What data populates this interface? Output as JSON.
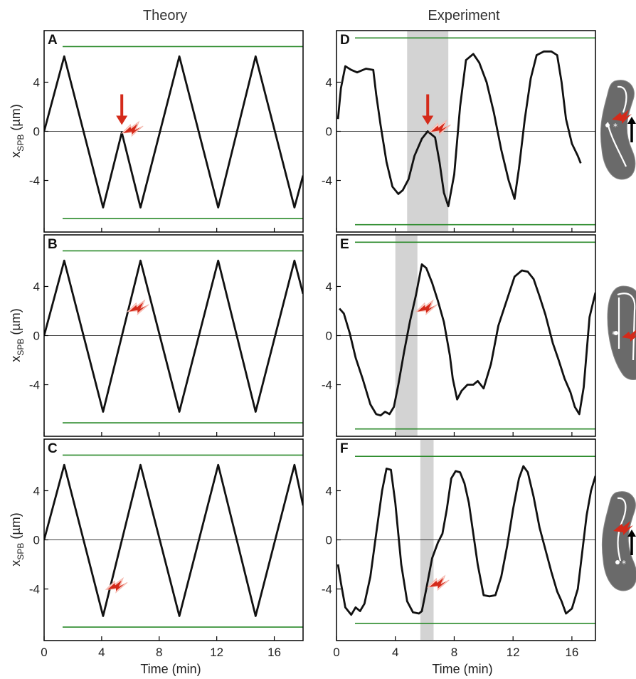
{
  "figure": {
    "col_titles": [
      "Theory",
      "Experiment"
    ],
    "xlabel": "Time (min)",
    "ylabel_main": "x",
    "ylabel_sub": "SPB",
    "ylabel_unit": " (µm)"
  },
  "colors": {
    "trace": "#111111",
    "boundary": "#2a8a2a",
    "shade": "#d3d3d3",
    "arrow": "#d42a1a",
    "cell": "#6a6a6a"
  },
  "chart_data": [
    {
      "label": "A",
      "type": "line",
      "column": "Theory",
      "xlim": [
        0,
        18
      ],
      "ylim": [
        -8.2,
        8.2
      ],
      "xticks": [
        0,
        4,
        8,
        12,
        16
      ],
      "yticks": [
        4,
        0,
        -4
      ],
      "boundaries": [
        6.9,
        -7.1
      ],
      "arrow": {
        "x": 5.4,
        "y": 0
      },
      "laser": {
        "x": 5.6,
        "y": 0.2
      },
      "series": [
        {
          "x": [
            0,
            1.4,
            4.1,
            5.4,
            6.7,
            9.4,
            12.1,
            14.7,
            17.4,
            18
          ],
          "y": [
            0,
            6.1,
            -6.2,
            -0.1,
            -6.2,
            6.1,
            -6.2,
            6.1,
            -6.2,
            -3.6
          ]
        }
      ]
    },
    {
      "label": "B",
      "type": "line",
      "column": "Theory",
      "xlim": [
        0,
        18
      ],
      "ylim": [
        -8.2,
        8.2
      ],
      "xticks": [
        0,
        4,
        8,
        12,
        16
      ],
      "yticks": [
        4,
        0,
        -4
      ],
      "boundaries": [
        6.9,
        -7.1
      ],
      "laser": {
        "x": 6.0,
        "y": 2.3
      },
      "series": [
        {
          "x": [
            0,
            1.4,
            4.1,
            6.7,
            9.4,
            12.1,
            14.7,
            17.4,
            18
          ],
          "y": [
            0,
            6.1,
            -6.2,
            6.1,
            -6.2,
            6.1,
            -6.2,
            6.1,
            3.4
          ]
        }
      ]
    },
    {
      "label": "C",
      "type": "line",
      "column": "Theory",
      "xlim": [
        0,
        18
      ],
      "ylim": [
        -8.2,
        8.2
      ],
      "xticks": [
        0,
        4,
        8,
        12,
        16
      ],
      "yticks": [
        4,
        0,
        -4
      ],
      "boundaries": [
        6.9,
        -7.1
      ],
      "laser": {
        "x": 4.5,
        "y": -3.7
      },
      "series": [
        {
          "x": [
            0,
            1.4,
            4.1,
            6.7,
            9.4,
            12.1,
            14.7,
            17.4,
            18
          ],
          "y": [
            0,
            6.1,
            -6.2,
            6.1,
            -6.2,
            6.1,
            -6.2,
            6.1,
            2.8
          ]
        }
      ]
    },
    {
      "label": "D",
      "type": "line",
      "column": "Experiment",
      "xlim": [
        0,
        17.6
      ],
      "ylim": [
        -8.2,
        8.2
      ],
      "xticks": [
        0,
        4,
        8,
        12,
        16
      ],
      "yticks": [
        4,
        0,
        -4
      ],
      "boundaries": [
        7.6,
        -7.6
      ],
      "shade": [
        4.8,
        7.6
      ],
      "arrow": {
        "x": 6.2,
        "y": 0
      },
      "laser": {
        "x": 6.5,
        "y": 0.3
      },
      "series": [
        {
          "x": [
            0.1,
            0.3,
            0.6,
            1.0,
            1.4,
            2.0,
            2.5,
            2.7,
            3.0,
            3.4,
            3.8,
            4.2,
            4.5,
            4.9,
            5.3,
            5.8,
            6.2,
            6.7,
            7.0,
            7.3,
            7.6,
            8.0,
            8.4,
            8.8,
            9.3,
            9.7,
            10.2,
            10.7,
            11.2,
            11.7,
            12.1,
            12.4,
            12.8,
            13.2,
            13.6,
            14.1,
            14.6,
            15.0,
            15.3,
            15.6,
            16.0,
            16.4,
            16.6
          ],
          "y": [
            1.0,
            3.5,
            5.3,
            5.0,
            4.8,
            5.1,
            5.0,
            3.0,
            0.5,
            -2.5,
            -4.5,
            -5.1,
            -4.8,
            -3.9,
            -2.0,
            -0.6,
            0.0,
            -0.5,
            -2.5,
            -5.0,
            -6.1,
            -3.5,
            2.0,
            5.8,
            6.3,
            5.6,
            4.0,
            1.5,
            -1.5,
            -4.0,
            -5.5,
            -3.0,
            1.0,
            4.3,
            6.2,
            6.5,
            6.5,
            6.2,
            4.0,
            1.0,
            -1.0,
            -2.0,
            -2.6
          ]
        }
      ]
    },
    {
      "label": "E",
      "type": "line",
      "column": "Experiment",
      "xlim": [
        0,
        17.6
      ],
      "ylim": [
        -8.2,
        8.2
      ],
      "xticks": [
        0,
        4,
        8,
        12,
        16
      ],
      "yticks": [
        4,
        0,
        -4
      ],
      "boundaries": [
        7.6,
        -7.6
      ],
      "shade": [
        4.0,
        5.5
      ],
      "laser": {
        "x": 5.6,
        "y": 2.3
      },
      "series": [
        {
          "x": [
            0.2,
            0.5,
            0.9,
            1.3,
            1.8,
            2.3,
            2.7,
            3.0,
            3.3,
            3.6,
            3.9,
            4.2,
            4.6,
            5.0,
            5.4,
            5.8,
            6.1,
            6.5,
            6.9,
            7.3,
            7.7,
            7.9,
            8.2,
            8.5,
            8.9,
            9.3,
            9.6,
            10.0,
            10.5,
            11.0,
            11.5,
            12.1,
            12.6,
            13.0,
            13.4,
            13.8,
            14.2,
            14.7,
            15.1,
            15.5,
            15.9,
            16.2,
            16.5,
            16.8,
            17.2,
            17.6
          ],
          "y": [
            2.2,
            1.8,
            0.2,
            -1.8,
            -3.6,
            -5.6,
            -6.4,
            -6.5,
            -6.2,
            -6.4,
            -5.8,
            -4.0,
            -1.3,
            1.2,
            3.3,
            5.8,
            5.5,
            4.3,
            2.8,
            1.1,
            -1.6,
            -3.5,
            -5.2,
            -4.5,
            -4.0,
            -4.0,
            -3.7,
            -4.3,
            -2.3,
            0.8,
            2.6,
            4.8,
            5.3,
            5.2,
            4.6,
            3.2,
            1.7,
            -0.6,
            -2.0,
            -3.5,
            -4.6,
            -5.8,
            -6.4,
            -4.2,
            1.5,
            3.5
          ]
        }
      ]
    },
    {
      "label": "F",
      "type": "line",
      "column": "Experiment",
      "xlim": [
        0,
        17.6
      ],
      "ylim": [
        -8.2,
        8.2
      ],
      "xticks": [
        0,
        4,
        8,
        12,
        16
      ],
      "yticks": [
        4,
        0,
        -4
      ],
      "boundaries": [
        6.8,
        -6.8
      ],
      "shade": [
        5.7,
        6.6
      ],
      "laser": {
        "x": 6.4,
        "y": -3.5
      },
      "series": [
        {
          "x": [
            0.1,
            0.3,
            0.6,
            1.0,
            1.3,
            1.6,
            1.9,
            2.3,
            2.7,
            3.1,
            3.4,
            3.7,
            4.0,
            4.4,
            4.8,
            5.2,
            5.6,
            5.8,
            6.1,
            6.5,
            6.9,
            7.2,
            7.5,
            7.8,
            8.1,
            8.4,
            8.7,
            9.0,
            9.3,
            9.6,
            10.0,
            10.4,
            10.8,
            11.2,
            11.6,
            12.0,
            12.4,
            12.7,
            13.0,
            13.4,
            13.8,
            14.2,
            14.6,
            15.0,
            15.3,
            15.6,
            16.0,
            16.4,
            16.7,
            17.0,
            17.3,
            17.6
          ],
          "y": [
            -2.0,
            -3.5,
            -5.5,
            -6.1,
            -5.5,
            -5.8,
            -5.2,
            -3.0,
            0.5,
            4.0,
            5.8,
            5.7,
            3.0,
            -2.0,
            -5.0,
            -5.9,
            -6.0,
            -5.8,
            -4.0,
            -1.5,
            -0.2,
            0.5,
            2.5,
            5.0,
            5.6,
            5.5,
            4.6,
            3.0,
            0.5,
            -2.0,
            -4.5,
            -4.6,
            -4.5,
            -3.0,
            -0.5,
            2.5,
            5.0,
            6.0,
            5.5,
            3.5,
            1.0,
            -0.8,
            -2.6,
            -4.2,
            -5.0,
            -6.0,
            -5.6,
            -4.0,
            -1.0,
            2.0,
            4.0,
            5.2
          ]
        }
      ]
    }
  ]
}
